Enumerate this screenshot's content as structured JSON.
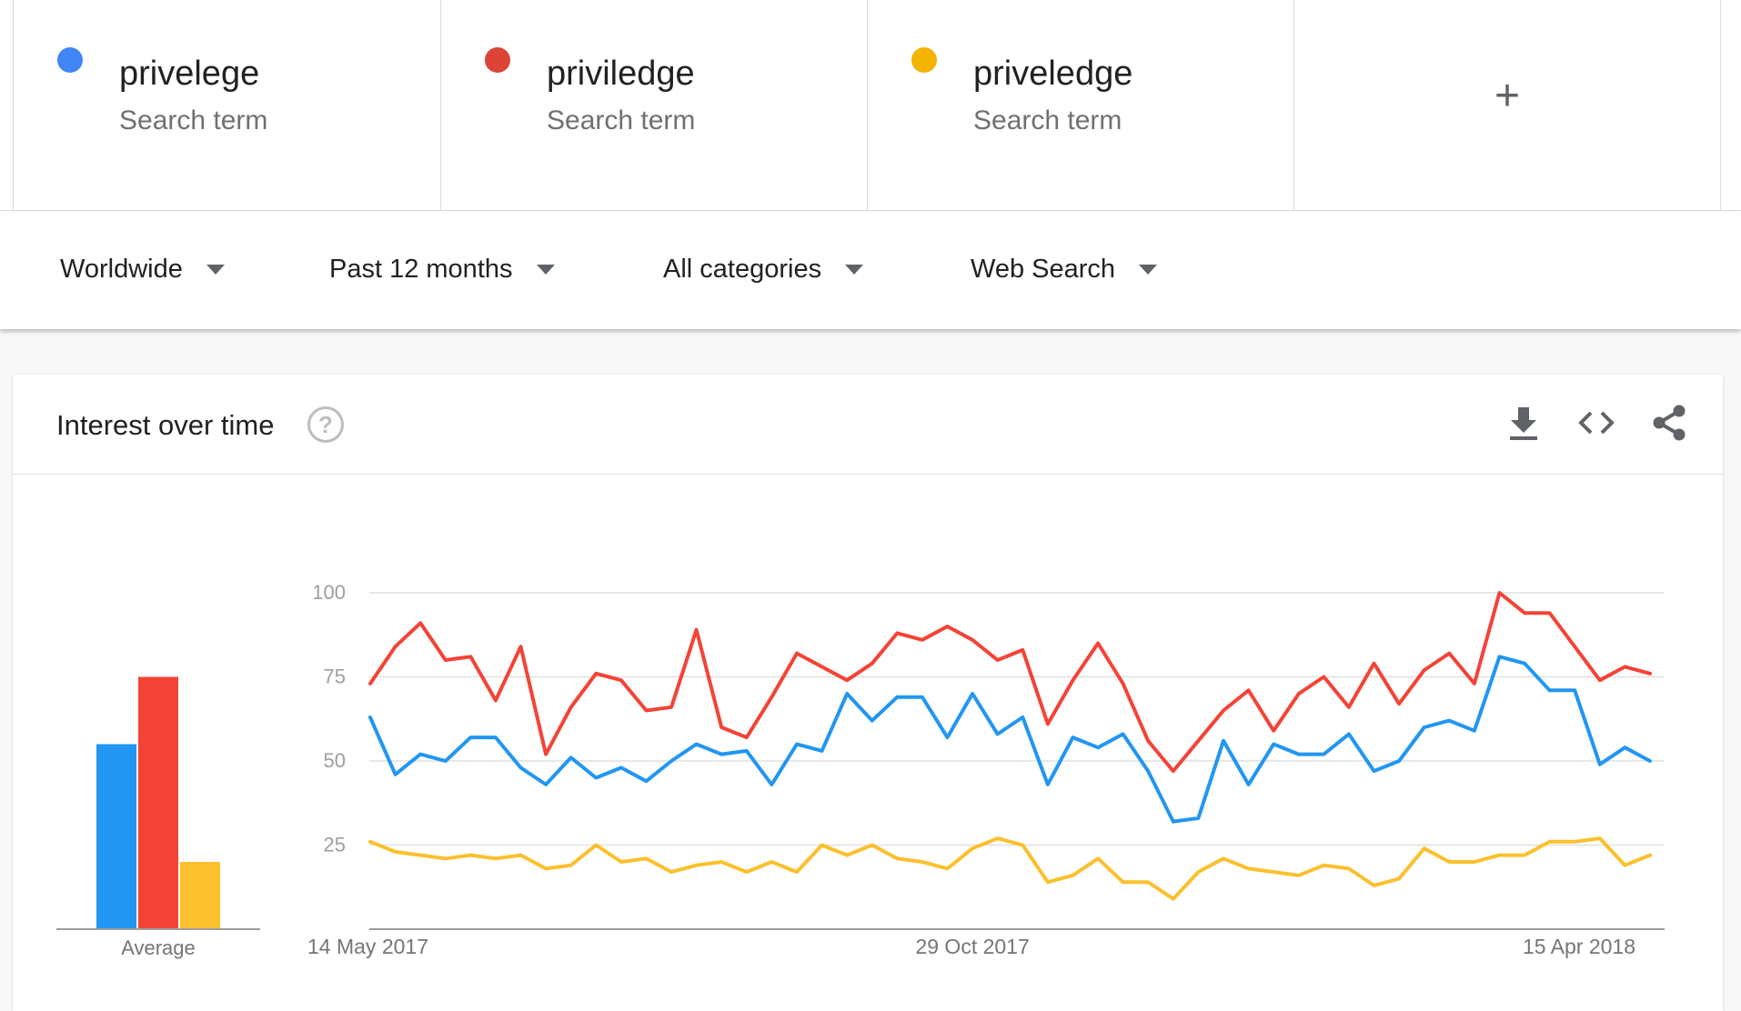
{
  "terms": [
    {
      "name": "privelege",
      "sub": "Search term",
      "color": "#4285f4"
    },
    {
      "name": "priviledge",
      "sub": "Search term",
      "color": "#db4437"
    },
    {
      "name": "priveledge",
      "sub": "Search term",
      "color": "#f4b400"
    }
  ],
  "add_label": "+",
  "filters": {
    "region": "Worldwide",
    "time": "Past 12 months",
    "category": "All categories",
    "search_type": "Web Search"
  },
  "card": {
    "title": "Interest over time",
    "help": "?"
  },
  "icons": {
    "download": "download-icon",
    "embed": "embed-code-icon",
    "share": "share-icon"
  },
  "chart_data": {
    "type": "line",
    "title": "",
    "ylim": [
      0,
      100
    ],
    "yticks": [
      25,
      50,
      75,
      100
    ],
    "grid": true,
    "x_tick_labels": [
      "14 May 2017",
      "29 Oct 2017",
      "15 Apr 2018"
    ],
    "x_tick_index": [
      0,
      24,
      48
    ],
    "series": [
      {
        "name": "privelege",
        "color": "#2196f3",
        "values": [
          63,
          46,
          52,
          50,
          57,
          57,
          48,
          43,
          51,
          45,
          48,
          44,
          50,
          55,
          52,
          53,
          43,
          55,
          53,
          70,
          62,
          69,
          69,
          57,
          70,
          58,
          63,
          43,
          57,
          54,
          58,
          47,
          32,
          33,
          56,
          43,
          55,
          52,
          52,
          58,
          47,
          50,
          60,
          62,
          59,
          81,
          79,
          71,
          71,
          49,
          54,
          50
        ]
      },
      {
        "name": "priviledge",
        "color": "#f44336",
        "values": [
          73,
          84,
          91,
          80,
          81,
          68,
          84,
          52,
          66,
          76,
          74,
          65,
          66,
          89,
          60,
          57,
          69,
          82,
          78,
          74,
          79,
          88,
          86,
          90,
          86,
          80,
          83,
          61,
          74,
          85,
          73,
          56,
          47,
          56,
          65,
          71,
          59,
          70,
          75,
          66,
          79,
          67,
          77,
          82,
          73,
          100,
          94,
          94,
          84,
          74,
          78,
          76
        ]
      },
      {
        "name": "priveledge",
        "color": "#fbc02d",
        "values": [
          26,
          23,
          22,
          21,
          22,
          21,
          22,
          18,
          19,
          25,
          20,
          21,
          17,
          19,
          20,
          17,
          20,
          17,
          25,
          22,
          25,
          21,
          20,
          18,
          24,
          27,
          25,
          14,
          16,
          21,
          14,
          14,
          9,
          17,
          21,
          18,
          17,
          16,
          19,
          18,
          13,
          15,
          24,
          20,
          20,
          22,
          22,
          26,
          26,
          27,
          19,
          22
        ]
      }
    ],
    "average": {
      "label": "Average",
      "values": [
        55,
        75,
        20
      ]
    }
  }
}
